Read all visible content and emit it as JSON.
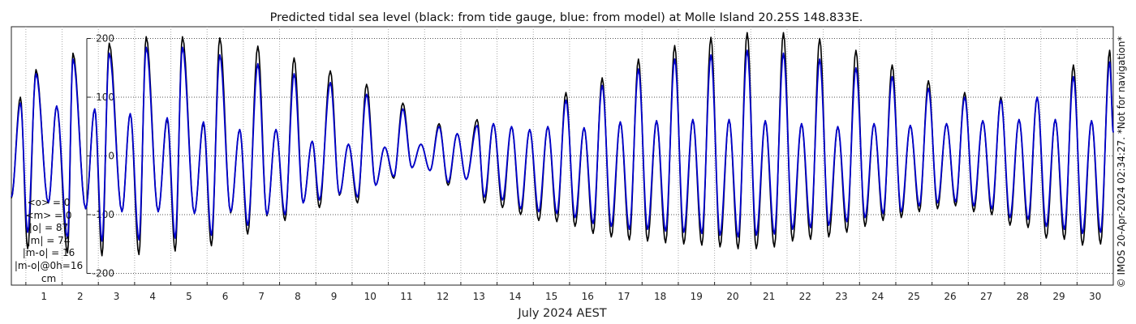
{
  "chart_data": {
    "type": "line",
    "title": "Predicted tidal sea level (black: from tide gauge, blue: from model) at Molle Island 20.25S 148.833E.",
    "xlabel": "July 2024 AEST",
    "ylabel": "",
    "xlim": [
      0.6,
      31.0
    ],
    "ylim": [
      -220,
      220
    ],
    "y_ticks": [
      -200,
      -100,
      0,
      100,
      200
    ],
    "x_tick_labels": [
      "1",
      "2",
      "3",
      "4",
      "5",
      "6",
      "7",
      "8",
      "9",
      "10",
      "11",
      "12",
      "13",
      "14",
      "15",
      "16",
      "17",
      "18",
      "19",
      "20",
      "21",
      "22",
      "23",
      "24",
      "25",
      "26",
      "27",
      "28",
      "29",
      "30"
    ],
    "grid": true,
    "series": [
      {
        "name": "from tide gauge",
        "color": "#000000",
        "x_unit": "day of July 2024",
        "extrema": [
          [
            0.6,
            -72
          ],
          [
            0.85,
            100
          ],
          [
            1.05,
            -158
          ],
          [
            1.28,
            147
          ],
          [
            1.62,
            -80
          ],
          [
            1.85,
            85
          ],
          [
            2.15,
            -165
          ],
          [
            2.3,
            175
          ],
          [
            2.65,
            -90
          ],
          [
            2.9,
            80
          ],
          [
            3.1,
            -170
          ],
          [
            3.3,
            192
          ],
          [
            3.65,
            -95
          ],
          [
            3.88,
            72
          ],
          [
            4.12,
            -168
          ],
          [
            4.32,
            203
          ],
          [
            4.65,
            -95
          ],
          [
            4.9,
            62
          ],
          [
            5.12,
            -162
          ],
          [
            5.32,
            203
          ],
          [
            5.65,
            -98
          ],
          [
            5.9,
            55
          ],
          [
            6.12,
            -153
          ],
          [
            6.35,
            201
          ],
          [
            6.65,
            -97
          ],
          [
            6.9,
            45
          ],
          [
            7.12,
            -133
          ],
          [
            7.4,
            187
          ],
          [
            7.65,
            -102
          ],
          [
            7.9,
            45
          ],
          [
            8.15,
            -110
          ],
          [
            8.4,
            167
          ],
          [
            8.65,
            -80
          ],
          [
            8.9,
            25
          ],
          [
            9.1,
            -88
          ],
          [
            9.4,
            145
          ],
          [
            9.65,
            -67
          ],
          [
            9.9,
            20
          ],
          [
            10.15,
            -80
          ],
          [
            10.4,
            122
          ],
          [
            10.65,
            -50
          ],
          [
            10.9,
            15
          ],
          [
            11.15,
            -38
          ],
          [
            11.4,
            90
          ],
          [
            11.65,
            -20
          ],
          [
            11.9,
            20
          ],
          [
            12.15,
            -25
          ],
          [
            12.4,
            55
          ],
          [
            12.65,
            -50
          ],
          [
            12.9,
            38
          ],
          [
            13.15,
            -40
          ],
          [
            13.45,
            62
          ],
          [
            13.65,
            -80
          ],
          [
            13.9,
            55
          ],
          [
            14.15,
            -88
          ],
          [
            14.4,
            50
          ],
          [
            14.65,
            -100
          ],
          [
            14.9,
            45
          ],
          [
            15.15,
            -110
          ],
          [
            15.4,
            50
          ],
          [
            15.65,
            -112
          ],
          [
            15.9,
            108
          ],
          [
            16.15,
            -120
          ],
          [
            16.4,
            48
          ],
          [
            16.65,
            -132
          ],
          [
            16.9,
            133
          ],
          [
            17.15,
            -138
          ],
          [
            17.4,
            58
          ],
          [
            17.65,
            -143
          ],
          [
            17.9,
            165
          ],
          [
            18.15,
            -145
          ],
          [
            18.4,
            60
          ],
          [
            18.65,
            -148
          ],
          [
            18.9,
            188
          ],
          [
            19.15,
            -150
          ],
          [
            19.4,
            62
          ],
          [
            19.65,
            -152
          ],
          [
            19.9,
            202
          ],
          [
            20.15,
            -155
          ],
          [
            20.4,
            62
          ],
          [
            20.65,
            -158
          ],
          [
            20.9,
            210
          ],
          [
            21.15,
            -158
          ],
          [
            21.4,
            60
          ],
          [
            21.65,
            -155
          ],
          [
            21.9,
            210
          ],
          [
            22.15,
            -145
          ],
          [
            22.4,
            55
          ],
          [
            22.65,
            -142
          ],
          [
            22.9,
            200
          ],
          [
            23.15,
            -138
          ],
          [
            23.4,
            50
          ],
          [
            23.65,
            -130
          ],
          [
            23.9,
            180
          ],
          [
            24.15,
            -120
          ],
          [
            24.4,
            55
          ],
          [
            24.65,
            -110
          ],
          [
            24.9,
            155
          ],
          [
            25.15,
            -105
          ],
          [
            25.4,
            52
          ],
          [
            25.65,
            -95
          ],
          [
            25.9,
            128
          ],
          [
            26.15,
            -90
          ],
          [
            26.4,
            55
          ],
          [
            26.65,
            -85
          ],
          [
            26.9,
            108
          ],
          [
            27.15,
            -95
          ],
          [
            27.4,
            60
          ],
          [
            27.65,
            -100
          ],
          [
            27.9,
            100
          ],
          [
            28.15,
            -118
          ],
          [
            28.4,
            62
          ],
          [
            28.65,
            -122
          ],
          [
            28.9,
            100
          ],
          [
            29.15,
            -140
          ],
          [
            29.4,
            62
          ],
          [
            29.65,
            -142
          ],
          [
            29.9,
            155
          ],
          [
            30.15,
            -152
          ],
          [
            30.4,
            60
          ],
          [
            30.65,
            -150
          ],
          [
            30.9,
            180
          ],
          [
            31.0,
            40
          ]
        ]
      },
      {
        "name": "from model",
        "color": "#0000cc",
        "x_unit": "day of July 2024",
        "extrema": [
          [
            0.6,
            -70
          ],
          [
            0.85,
            90
          ],
          [
            1.05,
            -130
          ],
          [
            1.28,
            140
          ],
          [
            1.62,
            -80
          ],
          [
            1.85,
            85
          ],
          [
            2.15,
            -140
          ],
          [
            2.3,
            165
          ],
          [
            2.65,
            -90
          ],
          [
            2.9,
            80
          ],
          [
            3.1,
            -145
          ],
          [
            3.3,
            175
          ],
          [
            3.65,
            -95
          ],
          [
            3.88,
            72
          ],
          [
            4.12,
            -143
          ],
          [
            4.32,
            185
          ],
          [
            4.65,
            -95
          ],
          [
            4.9,
            65
          ],
          [
            5.12,
            -140
          ],
          [
            5.32,
            185
          ],
          [
            5.65,
            -98
          ],
          [
            5.9,
            58
          ],
          [
            6.12,
            -135
          ],
          [
            6.35,
            172
          ],
          [
            6.65,
            -95
          ],
          [
            6.9,
            45
          ],
          [
            7.12,
            -118
          ],
          [
            7.4,
            157
          ],
          [
            7.65,
            -100
          ],
          [
            7.9,
            45
          ],
          [
            8.15,
            -100
          ],
          [
            8.4,
            140
          ],
          [
            8.65,
            -80
          ],
          [
            8.9,
            25
          ],
          [
            9.1,
            -75
          ],
          [
            9.4,
            125
          ],
          [
            9.65,
            -65
          ],
          [
            9.9,
            20
          ],
          [
            10.15,
            -70
          ],
          [
            10.4,
            105
          ],
          [
            10.65,
            -50
          ],
          [
            10.9,
            15
          ],
          [
            11.15,
            -35
          ],
          [
            11.4,
            80
          ],
          [
            11.65,
            -20
          ],
          [
            11.9,
            20
          ],
          [
            12.15,
            -25
          ],
          [
            12.4,
            50
          ],
          [
            12.65,
            -45
          ],
          [
            12.9,
            38
          ],
          [
            13.15,
            -40
          ],
          [
            13.45,
            52
          ],
          [
            13.65,
            -70
          ],
          [
            13.9,
            55
          ],
          [
            14.15,
            -75
          ],
          [
            14.4,
            50
          ],
          [
            14.65,
            -90
          ],
          [
            14.9,
            45
          ],
          [
            15.15,
            -95
          ],
          [
            15.4,
            50
          ],
          [
            15.65,
            -98
          ],
          [
            15.9,
            95
          ],
          [
            16.15,
            -105
          ],
          [
            16.4,
            48
          ],
          [
            16.65,
            -115
          ],
          [
            16.9,
            120
          ],
          [
            17.15,
            -120
          ],
          [
            17.4,
            58
          ],
          [
            17.65,
            -125
          ],
          [
            17.9,
            148
          ],
          [
            18.15,
            -125
          ],
          [
            18.4,
            60
          ],
          [
            18.65,
            -128
          ],
          [
            18.9,
            165
          ],
          [
            19.15,
            -130
          ],
          [
            19.4,
            62
          ],
          [
            19.65,
            -132
          ],
          [
            19.9,
            172
          ],
          [
            20.15,
            -135
          ],
          [
            20.4,
            62
          ],
          [
            20.65,
            -138
          ],
          [
            20.9,
            180
          ],
          [
            21.15,
            -135
          ],
          [
            21.4,
            60
          ],
          [
            21.65,
            -133
          ],
          [
            21.9,
            175
          ],
          [
            22.15,
            -125
          ],
          [
            22.4,
            55
          ],
          [
            22.65,
            -122
          ],
          [
            22.9,
            165
          ],
          [
            23.15,
            -118
          ],
          [
            23.4,
            50
          ],
          [
            23.65,
            -112
          ],
          [
            23.9,
            150
          ],
          [
            24.15,
            -105
          ],
          [
            24.4,
            55
          ],
          [
            24.65,
            -98
          ],
          [
            24.9,
            135
          ],
          [
            25.15,
            -95
          ],
          [
            25.4,
            52
          ],
          [
            25.65,
            -85
          ],
          [
            25.9,
            115
          ],
          [
            26.15,
            -80
          ],
          [
            26.4,
            55
          ],
          [
            26.65,
            -78
          ],
          [
            26.9,
            100
          ],
          [
            27.15,
            -85
          ],
          [
            27.4,
            60
          ],
          [
            27.65,
            -90
          ],
          [
            27.9,
            95
          ],
          [
            28.15,
            -105
          ],
          [
            28.4,
            62
          ],
          [
            28.65,
            -108
          ],
          [
            28.9,
            100
          ],
          [
            29.15,
            -120
          ],
          [
            29.4,
            62
          ],
          [
            29.65,
            -125
          ],
          [
            29.9,
            135
          ],
          [
            30.15,
            -132
          ],
          [
            30.4,
            60
          ],
          [
            30.65,
            -130
          ],
          [
            30.9,
            160
          ],
          [
            31.0,
            40
          ]
        ]
      }
    ]
  },
  "stats": {
    "lines": [
      "<o> = 0",
      "<m> = 0",
      "|o| = 87",
      "|m| = 74",
      "|m-o| = 16",
      "|m-o|@0h=16",
      "cm"
    ]
  },
  "credit": "© IMOS 20-Apr-2024 02:34:27. *Not for navigation*"
}
